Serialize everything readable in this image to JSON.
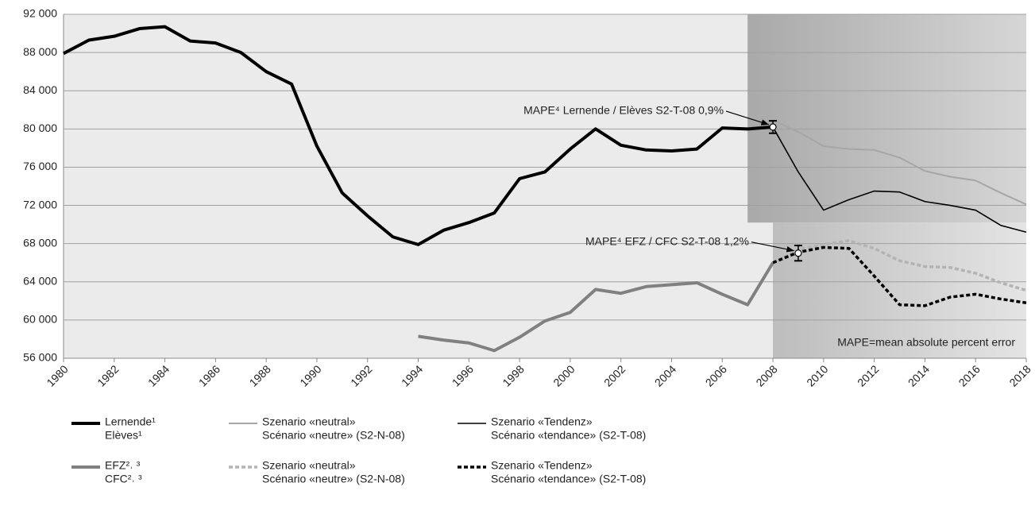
{
  "chart_data": {
    "type": "line",
    "x": [
      1980,
      1981,
      1982,
      1983,
      1984,
      1985,
      1986,
      1987,
      1988,
      1989,
      1990,
      1991,
      1992,
      1993,
      1994,
      1995,
      1996,
      1997,
      1998,
      1999,
      2000,
      2001,
      2002,
      2003,
      2004,
      2005,
      2006,
      2007,
      2008,
      2009,
      2010,
      2011,
      2012,
      2013,
      2014,
      2015,
      2016,
      2017,
      2018
    ],
    "xlim": [
      1980,
      2018
    ],
    "xticks": [
      1980,
      1982,
      1984,
      1986,
      1988,
      1990,
      1992,
      1994,
      1996,
      1998,
      2000,
      2002,
      2004,
      2006,
      2008,
      2010,
      2012,
      2014,
      2016,
      2018
    ],
    "ylim": [
      56000,
      92000
    ],
    "yticks": [
      {
        "value": 56000,
        "label": "56 000"
      },
      {
        "value": 60000,
        "label": "60 000"
      },
      {
        "value": 64000,
        "label": "64 000"
      },
      {
        "value": 68000,
        "label": "68 000"
      },
      {
        "value": 72000,
        "label": "72 000"
      },
      {
        "value": 76000,
        "label": "76 000"
      },
      {
        "value": 80000,
        "label": "80 000"
      },
      {
        "value": 84000,
        "label": "84 000"
      },
      {
        "value": 88000,
        "label": "88 000"
      },
      {
        "value": 92000,
        "label": "92 000"
      }
    ],
    "grid": true,
    "series": [
      {
        "name": [
          "Lernende¹",
          "Elèves¹"
        ],
        "color": "#000000",
        "width": 4,
        "dash": "none",
        "values": [
          87900,
          89300,
          89700,
          90500,
          90700,
          89200,
          89000,
          88000,
          86000,
          84700,
          78200,
          73300,
          70900,
          68700,
          67900,
          69400,
          70200,
          71200,
          74800,
          75500,
          77900,
          80000,
          78300,
          77800,
          77700,
          77900,
          80100,
          80000,
          80200,
          null,
          null,
          null,
          null,
          null,
          null,
          null,
          null,
          null,
          null
        ]
      },
      {
        "name": [
          "Szenario «neutral»",
          "Scénario «neutre» (S2-N-08)"
        ],
        "color": "#a6a6a6",
        "width": 2,
        "dash": "none",
        "values": [
          null,
          null,
          null,
          null,
          null,
          null,
          null,
          null,
          null,
          null,
          null,
          null,
          null,
          null,
          null,
          null,
          null,
          null,
          null,
          null,
          null,
          null,
          null,
          null,
          null,
          null,
          null,
          null,
          80900,
          79700,
          78200,
          77900,
          77800,
          77000,
          75600,
          75000,
          74600,
          73300,
          72100
        ]
      },
      {
        "name": [
          "Szenario «Tendenz»",
          "Scénario «tendance» (S2-T-08)"
        ],
        "color": "#000000",
        "width": 1.6,
        "dash": "none",
        "values": [
          null,
          null,
          null,
          null,
          null,
          null,
          null,
          null,
          null,
          null,
          null,
          null,
          null,
          null,
          null,
          null,
          null,
          null,
          null,
          null,
          null,
          null,
          null,
          null,
          null,
          null,
          null,
          null,
          80200,
          75500,
          71500,
          72600,
          73500,
          73400,
          72400,
          72000,
          71500,
          69900,
          69200
        ]
      },
      {
        "name": [
          "EFZ²˒ ³",
          "CFC²˒ ³"
        ],
        "color": "#808080",
        "width": 4,
        "dash": "none",
        "values": [
          null,
          null,
          null,
          null,
          null,
          null,
          null,
          null,
          null,
          null,
          null,
          null,
          null,
          null,
          58300,
          57900,
          57600,
          56800,
          58200,
          59900,
          60800,
          63200,
          62800,
          63500,
          63700,
          63900,
          62700,
          61600,
          66000,
          null,
          null,
          null,
          null,
          null,
          null,
          null,
          null,
          null,
          null
        ]
      },
      {
        "name": [
          "Szenario «neutral»",
          "Scénario «neutre» (S2-N-08)"
        ],
        "color": "#b3b3b3",
        "width": 3.5,
        "dash": "5 3",
        "values": [
          null,
          null,
          null,
          null,
          null,
          null,
          null,
          null,
          null,
          null,
          null,
          null,
          null,
          null,
          null,
          null,
          null,
          null,
          null,
          null,
          null,
          null,
          null,
          null,
          null,
          null,
          null,
          null,
          66000,
          67400,
          67900,
          68300,
          67500,
          66200,
          65600,
          65500,
          64900,
          63900,
          63100
        ]
      },
      {
        "name": [
          "Szenario «Tendenz»",
          "Scénario «tendance» (S2-T-08)"
        ],
        "color": "#000000",
        "width": 3.5,
        "dash": "5 3",
        "values": [
          null,
          null,
          null,
          null,
          null,
          null,
          null,
          null,
          null,
          null,
          null,
          null,
          null,
          null,
          null,
          null,
          null,
          null,
          null,
          null,
          null,
          null,
          null,
          null,
          null,
          null,
          null,
          null,
          66000,
          67100,
          67600,
          67500,
          64600,
          61600,
          61500,
          62400,
          62700,
          62200,
          61800
        ]
      }
    ],
    "annotations": [
      {
        "text": "MAPE⁴ Lernende / Elèves S2-T-08 0,9%",
        "x": 2008,
        "y": 80200,
        "error": 650
      },
      {
        "text": "MAPE⁴ EFZ / CFC S2-T-08 1,2%",
        "x": 2009,
        "y": 67000,
        "error": 800
      }
    ],
    "note": "MAPE=mean absolute percent error"
  }
}
